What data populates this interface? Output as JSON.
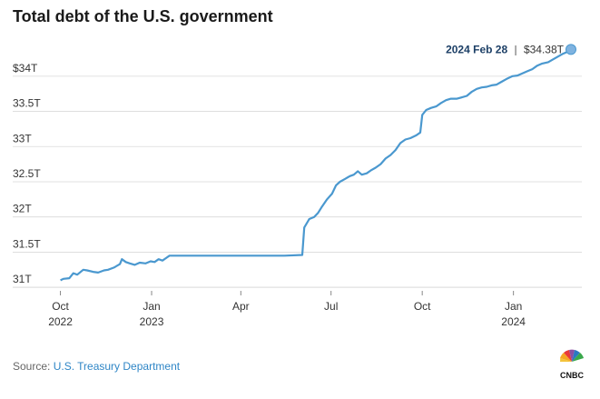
{
  "title": "Total debt of the U.S. government",
  "source": {
    "prefix": "Source:",
    "name": "U.S. Treasury Department"
  },
  "logo_text": "CNBC",
  "colors": {
    "line": "#4a98cf",
    "grid": "#d9d9d9",
    "endpoint": "#7fb3e0"
  },
  "chart_data": {
    "type": "line",
    "title": "Total debt of the U.S. government",
    "xlabel": "",
    "ylabel": "",
    "ylim": [
      30.95,
      34.45
    ],
    "xlim": [
      "2022-09-25",
      "2024-03-10"
    ],
    "y_ticks": [
      {
        "value": 31,
        "label": "31T"
      },
      {
        "value": 31.5,
        "label": "31.5T"
      },
      {
        "value": 32,
        "label": "32T"
      },
      {
        "value": 32.5,
        "label": "32.5T"
      },
      {
        "value": 33,
        "label": "33T"
      },
      {
        "value": 33.5,
        "label": "33.5T"
      },
      {
        "value": 34,
        "label": "$34T"
      }
    ],
    "x_ticks": [
      {
        "date": "2022-10-01",
        "label": "Oct",
        "sublabel": "2022"
      },
      {
        "date": "2023-01-01",
        "label": "Jan",
        "sublabel": "2023"
      },
      {
        "date": "2023-04-01",
        "label": "Apr",
        "sublabel": ""
      },
      {
        "date": "2023-07-01",
        "label": "Jul",
        "sublabel": ""
      },
      {
        "date": "2023-10-01",
        "label": "Oct",
        "sublabel": ""
      },
      {
        "date": "2024-01-01",
        "label": "Jan",
        "sublabel": "2024"
      }
    ],
    "grid": "horizontal",
    "annotation": {
      "date_label": "2024 Feb 28",
      "separator": "|",
      "value_label": "$34.38T",
      "date": "2024-02-28",
      "value": 34.38
    },
    "series": [
      {
        "points": [
          [
            "2022-10-01",
            31.1
          ],
          [
            "2022-10-04",
            31.12
          ],
          [
            "2022-10-10",
            31.13
          ],
          [
            "2022-10-14",
            31.2
          ],
          [
            "2022-10-18",
            31.18
          ],
          [
            "2022-10-24",
            31.25
          ],
          [
            "2022-10-28",
            31.24
          ],
          [
            "2022-11-03",
            31.22
          ],
          [
            "2022-11-08",
            31.21
          ],
          [
            "2022-11-14",
            31.24
          ],
          [
            "2022-11-18",
            31.25
          ],
          [
            "2022-11-24",
            31.28
          ],
          [
            "2022-11-30",
            31.33
          ],
          [
            "2022-12-02",
            31.4
          ],
          [
            "2022-12-06",
            31.36
          ],
          [
            "2022-12-10",
            31.34
          ],
          [
            "2022-12-15",
            31.32
          ],
          [
            "2022-12-20",
            31.35
          ],
          [
            "2022-12-26",
            31.34
          ],
          [
            "2022-12-31",
            31.37
          ],
          [
            "2023-01-04",
            31.36
          ],
          [
            "2023-01-08",
            31.4
          ],
          [
            "2023-01-12",
            31.38
          ],
          [
            "2023-01-16",
            31.42
          ],
          [
            "2023-01-19",
            31.45
          ],
          [
            "2023-02-15",
            31.45
          ],
          [
            "2023-03-15",
            31.45
          ],
          [
            "2023-04-15",
            31.45
          ],
          [
            "2023-05-15",
            31.45
          ],
          [
            "2023-06-02",
            31.46
          ],
          [
            "2023-06-04",
            31.85
          ],
          [
            "2023-06-09",
            31.97
          ],
          [
            "2023-06-14",
            32.0
          ],
          [
            "2023-06-18",
            32.06
          ],
          [
            "2023-06-22",
            32.15
          ],
          [
            "2023-06-27",
            32.25
          ],
          [
            "2023-07-02",
            32.33
          ],
          [
            "2023-07-06",
            32.45
          ],
          [
            "2023-07-10",
            32.5
          ],
          [
            "2023-07-15",
            32.54
          ],
          [
            "2023-07-20",
            32.58
          ],
          [
            "2023-07-24",
            32.6
          ],
          [
            "2023-07-28",
            32.65
          ],
          [
            "2023-08-01",
            32.6
          ],
          [
            "2023-08-06",
            32.62
          ],
          [
            "2023-08-10",
            32.66
          ],
          [
            "2023-08-15",
            32.7
          ],
          [
            "2023-08-20",
            32.75
          ],
          [
            "2023-08-25",
            32.83
          ],
          [
            "2023-08-30",
            32.88
          ],
          [
            "2023-09-04",
            32.95
          ],
          [
            "2023-09-09",
            33.05
          ],
          [
            "2023-09-14",
            33.1
          ],
          [
            "2023-09-19",
            33.12
          ],
          [
            "2023-09-25",
            33.16
          ],
          [
            "2023-09-29",
            33.2
          ],
          [
            "2023-10-01",
            33.45
          ],
          [
            "2023-10-05",
            33.52
          ],
          [
            "2023-10-10",
            33.55
          ],
          [
            "2023-10-15",
            33.57
          ],
          [
            "2023-10-20",
            33.62
          ],
          [
            "2023-10-25",
            33.66
          ],
          [
            "2023-10-30",
            33.68
          ],
          [
            "2023-11-05",
            33.68
          ],
          [
            "2023-11-10",
            33.7
          ],
          [
            "2023-11-15",
            33.72
          ],
          [
            "2023-11-20",
            33.78
          ],
          [
            "2023-11-25",
            33.82
          ],
          [
            "2023-11-30",
            33.84
          ],
          [
            "2023-12-05",
            33.85
          ],
          [
            "2023-12-10",
            33.87
          ],
          [
            "2023-12-15",
            33.88
          ],
          [
            "2023-12-20",
            33.92
          ],
          [
            "2023-12-25",
            33.96
          ],
          [
            "2023-12-31",
            34.0
          ],
          [
            "2024-01-05",
            34.01
          ],
          [
            "2024-01-10",
            34.04
          ],
          [
            "2024-01-15",
            34.07
          ],
          [
            "2024-01-20",
            34.1
          ],
          [
            "2024-01-25",
            34.15
          ],
          [
            "2024-01-30",
            34.18
          ],
          [
            "2024-02-05",
            34.2
          ],
          [
            "2024-02-10",
            34.24
          ],
          [
            "2024-02-15",
            34.28
          ],
          [
            "2024-02-20",
            34.32
          ],
          [
            "2024-02-25",
            34.35
          ],
          [
            "2024-02-28",
            34.38
          ]
        ]
      }
    ]
  }
}
